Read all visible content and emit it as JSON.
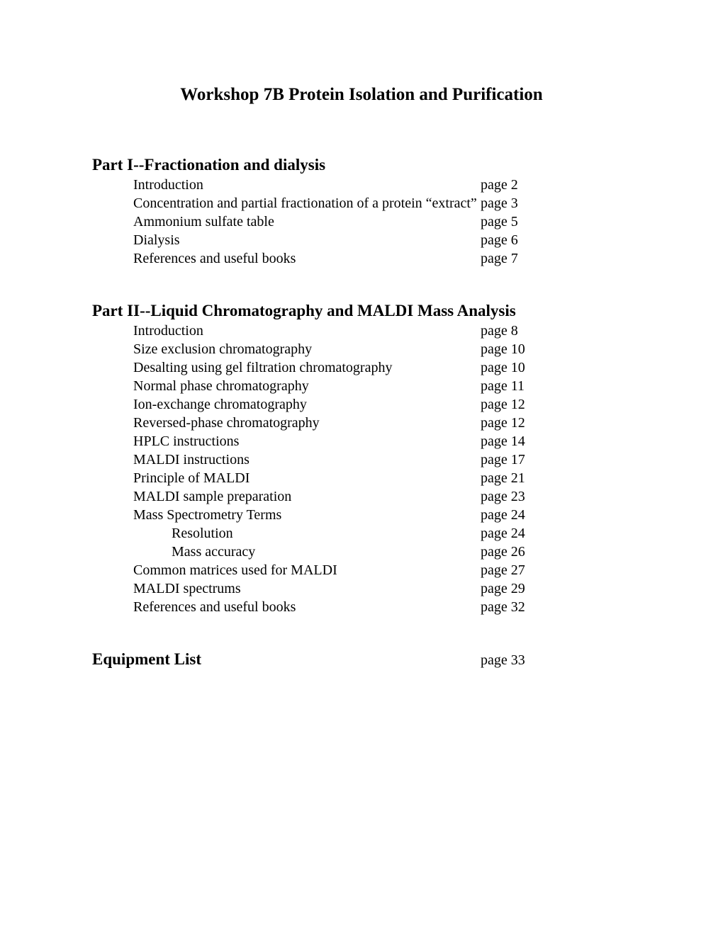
{
  "title": "Workshop 7B Protein Isolation and Purification",
  "part1": {
    "header": "Part I--Fractionation and dialysis",
    "items": [
      {
        "label": "Introduction",
        "page": "page 2"
      },
      {
        "label": "Concentration and partial fractionation of a protein “extract”",
        "page": "page 3"
      },
      {
        "label": "Ammonium sulfate table",
        "page": "page 5"
      },
      {
        "label": "Dialysis",
        "page": "page 6"
      },
      {
        "label": "References and useful books",
        "page": "page 7"
      }
    ]
  },
  "part2": {
    "header": "Part II--Liquid Chromatography and MALDI Mass Analysis",
    "items": [
      {
        "label": "Introduction",
        "page": "page 8"
      },
      {
        "label": "Size exclusion chromatography",
        "page": "page 10"
      },
      {
        "label": "Desalting using gel filtration chromatography",
        "page": "page 10"
      },
      {
        "label": "Normal phase chromatography",
        "page": "page 11"
      },
      {
        "label": "Ion-exchange chromatography",
        "page": "page 12"
      },
      {
        "label": "Reversed-phase chromatography",
        "page": "page 12"
      },
      {
        "label": "HPLC instructions",
        "page": "page 14"
      },
      {
        "label": "MALDI instructions",
        "page": "page 17"
      },
      {
        "label": "Principle of MALDI",
        "page": "page 21"
      },
      {
        "label": "MALDI sample preparation",
        "page": "page 23"
      },
      {
        "label": "Mass Spectrometry Terms",
        "page": "page 24"
      },
      {
        "label": "Resolution",
        "page": "page 24",
        "sub": true
      },
      {
        "label": "Mass accuracy",
        "page": "page 26",
        "sub": true
      },
      {
        "label": "Common matrices used for MALDI",
        "page": "page 27"
      },
      {
        "label": "MALDI spectrums",
        "page": "page 29"
      },
      {
        "label": "References and useful books",
        "page": "page 32"
      }
    ]
  },
  "equipment": {
    "title": "Equipment List",
    "page": "page 33"
  },
  "colors": {
    "background": "#ffffff",
    "text": "#000000"
  },
  "font": {
    "family": "Times New Roman",
    "title_size_pt": 18,
    "section_header_size_pt": 16,
    "body_size_pt": 14
  }
}
